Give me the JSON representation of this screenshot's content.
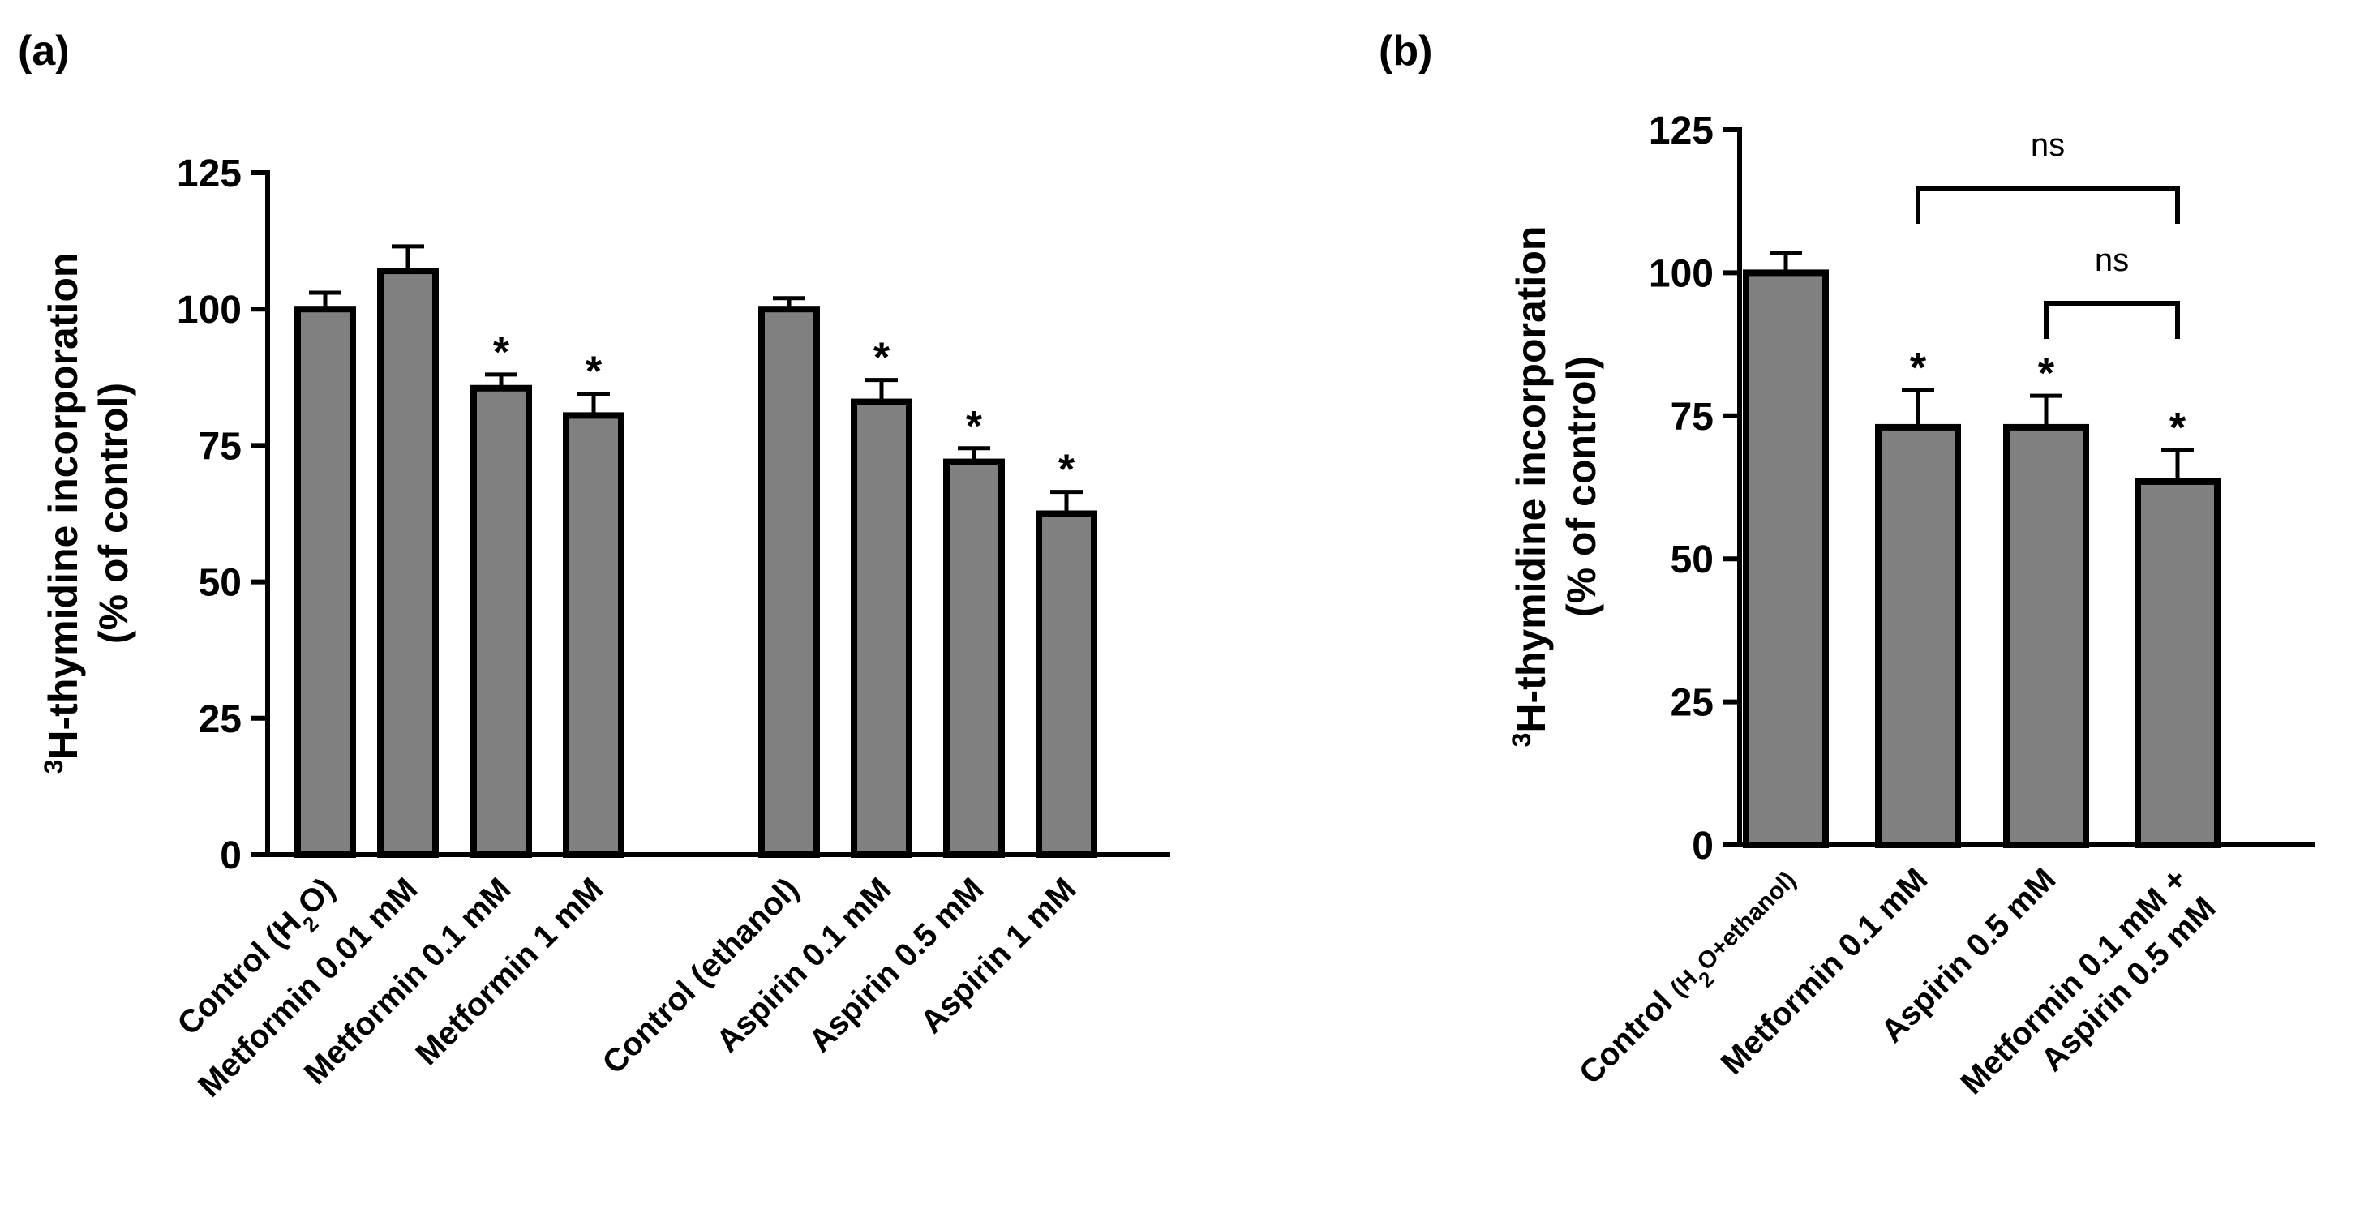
{
  "chart_data": [
    {
      "type": "bar",
      "panel_label": "(a)",
      "ylabel_sup": "3",
      "ylabel_line1": "H-thymidine incorporation",
      "ylabel_line2": "(% of control)",
      "ylim": [
        0,
        125
      ],
      "yticks": [
        "0",
        "25",
        "50",
        "75",
        "100",
        "125"
      ],
      "categories": [
        {
          "label": "Control (H",
          "sub": "2",
          "tail": "O)"
        },
        {
          "label": "Metformin 0.01 mM"
        },
        {
          "label": "Metformin 0.1 mM"
        },
        {
          "label": "Metformin 1 mM"
        },
        {
          "label": "Control (ethanol)"
        },
        {
          "label": "Aspirin 0.1 mM"
        },
        {
          "label": "Aspirin 0.5 mM"
        },
        {
          "label": "Aspirin 1 mM"
        }
      ],
      "values": [
        100,
        107,
        85.5,
        80.5,
        100,
        83,
        72,
        62.5
      ],
      "errors": [
        3,
        4.5,
        2.5,
        4,
        2,
        4,
        2.5,
        4
      ],
      "significance": [
        "",
        "",
        "*",
        "*",
        "",
        "*",
        "*",
        "*"
      ]
    },
    {
      "type": "bar",
      "panel_label": "(b)",
      "ylabel_sup": "3",
      "ylabel_line1": "H-thymidine incorporation",
      "ylabel_line2": "(%  of control)",
      "ylim": [
        0,
        125
      ],
      "yticks": [
        "0",
        "25",
        "50",
        "75",
        "100",
        "125"
      ],
      "categories": [
        {
          "label": "Control ",
          "small": "(H",
          "sub": "2",
          "tail": "O+ethanol)"
        },
        {
          "label": "Metformin 0.1 mM"
        },
        {
          "label": "Aspirin 0.5 mM"
        },
        {
          "label": "Metformin 0.1 mM +",
          "label2": "Aspirin 0.5 mM"
        }
      ],
      "values": [
        100,
        73,
        73,
        63.5
      ],
      "errors": [
        3.5,
        6.5,
        5.5,
        5.5
      ],
      "significance": [
        "",
        "*",
        "*",
        "*"
      ],
      "comparisons": [
        {
          "from": 1,
          "to": 3,
          "label": "ns"
        },
        {
          "from": 2,
          "to": 3,
          "label": "ns"
        }
      ]
    }
  ]
}
